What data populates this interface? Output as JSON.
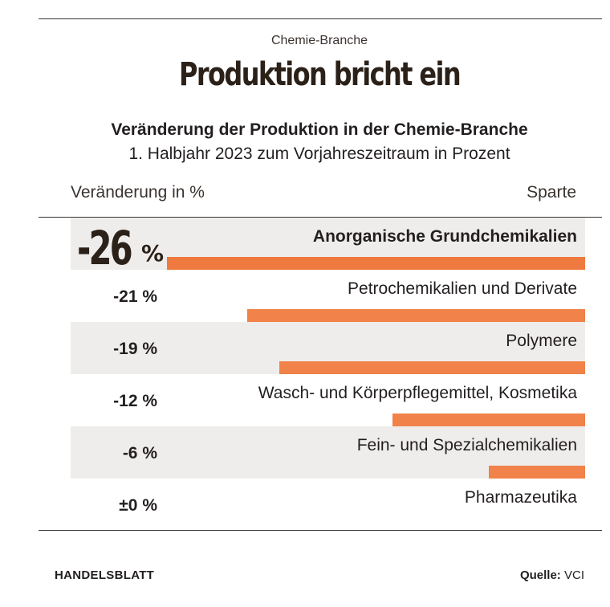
{
  "kicker": "Chemie-Branche",
  "headline": "Produktion bricht ein",
  "chart_data": {
    "type": "bar",
    "title": "Veränderung der Produktion in der Chemie-Branche",
    "subtitle": "1. Halbjahr 2023 zum Vorjahreszeitraum in Prozent",
    "xlabel": "Veränderung in %",
    "ylabel": "Sparte",
    "unit": "%",
    "categories": [
      "Anorganische Grundchemikalien",
      "Petrochemikalien und Derivate",
      "Polymere",
      "Wasch- und Körperpflegemittel, Kosmetika",
      "Fein- und Spezialchemikalien",
      "Pharmazeutika"
    ],
    "values": [
      -26,
      -21,
      -19,
      -12,
      -6,
      0
    ],
    "value_labels": [
      "-26",
      "-21 %",
      "-19 %",
      "-12 %",
      "-6 %",
      "±0 %"
    ],
    "highlight_index": 0,
    "xlim": [
      -26,
      0
    ],
    "bar_color": "#f0824a",
    "row_shading": "#efedeb"
  },
  "highlight_unit": "%",
  "footer": {
    "brand": "HANDELSBLATT",
    "source_label": "Quelle:",
    "source_value": "VCI"
  }
}
